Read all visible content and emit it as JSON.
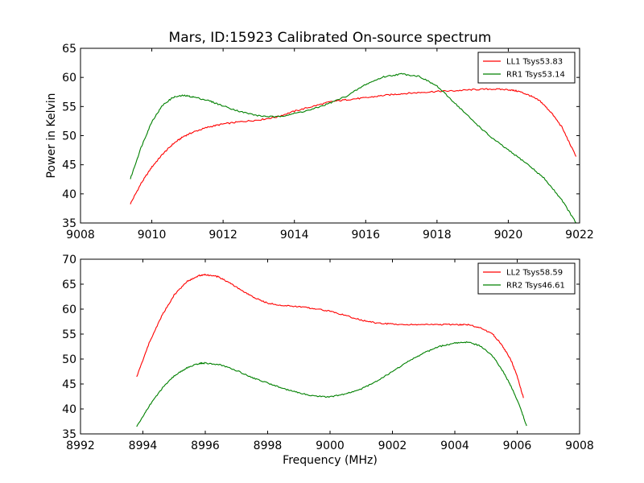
{
  "chart_data": [
    {
      "type": "line",
      "title": "Mars, ID:15923 Calibrated On-source spectrum",
      "xlabel": "",
      "ylabel": "Power in Kelvin",
      "xlim": [
        9008,
        9022
      ],
      "ylim": [
        35,
        65
      ],
      "xticks": [
        9008,
        9010,
        9012,
        9014,
        9016,
        9018,
        9020,
        9022
      ],
      "yticks": [
        35,
        40,
        45,
        50,
        55,
        60,
        65
      ],
      "grid": false,
      "legend_position": "top-right",
      "series": [
        {
          "name": "LL1 Tsys53.83",
          "color": "#ff0000",
          "x": [
            9009.4,
            9009.7,
            9010.0,
            9010.3,
            9010.6,
            9010.9,
            9011.2,
            9011.6,
            9012.0,
            9012.5,
            9013.0,
            9013.5,
            9014.0,
            9014.5,
            9015.0,
            9015.5,
            9016.0,
            9016.5,
            9017.0,
            9017.5,
            9018.0,
            9018.5,
            9019.0,
            9019.5,
            9020.0,
            9020.3,
            9020.6,
            9020.9,
            9021.2,
            9021.5,
            9021.9
          ],
          "y": [
            38.3,
            41.8,
            44.6,
            46.8,
            48.6,
            49.9,
            50.7,
            51.5,
            52.0,
            52.4,
            52.7,
            53.2,
            54.2,
            55.0,
            55.8,
            56.2,
            56.5,
            56.9,
            57.2,
            57.4,
            57.6,
            57.7,
            57.9,
            58.0,
            57.9,
            57.6,
            56.9,
            55.9,
            54.0,
            51.5,
            46.4
          ]
        },
        {
          "name": "RR1 Tsys53.14",
          "color": "#008000",
          "x": [
            9009.4,
            9009.7,
            9010.0,
            9010.3,
            9010.6,
            9010.9,
            9011.2,
            9011.6,
            9012.0,
            9012.5,
            9013.0,
            9013.5,
            9014.0,
            9014.5,
            9015.0,
            9015.5,
            9016.0,
            9016.5,
            9017.0,
            9017.5,
            9018.0,
            9018.5,
            9019.0,
            9019.5,
            9020.0,
            9020.5,
            9021.0,
            9021.5,
            9021.9
          ],
          "y": [
            42.6,
            48.0,
            52.4,
            55.2,
            56.6,
            56.9,
            56.6,
            56.0,
            55.1,
            54.1,
            53.4,
            53.2,
            53.8,
            54.5,
            55.6,
            56.9,
            58.8,
            60.1,
            60.6,
            60.2,
            58.5,
            55.6,
            52.6,
            49.8,
            47.5,
            45.3,
            42.7,
            39.0,
            35.0
          ]
        }
      ]
    },
    {
      "type": "line",
      "title": "",
      "xlabel": "Frequency (MHz)",
      "ylabel": "",
      "xlim": [
        8992,
        9008
      ],
      "ylim": [
        35,
        70
      ],
      "xticks": [
        8992,
        8994,
        8996,
        8998,
        9000,
        9002,
        9004,
        9006,
        9008
      ],
      "yticks": [
        35,
        40,
        45,
        50,
        55,
        60,
        65,
        70
      ],
      "grid": false,
      "legend_position": "top-right",
      "series": [
        {
          "name": "LL2 Tsys58.59",
          "color": "#ff0000",
          "x": [
            8993.8,
            8994.2,
            8994.6,
            8995.0,
            8995.4,
            8995.8,
            8996.0,
            8996.4,
            8996.8,
            8997.2,
            8997.6,
            8998.0,
            8998.5,
            8999.0,
            8999.5,
            9000.0,
            9000.5,
            9001.0,
            9001.5,
            9002.0,
            9002.5,
            9003.0,
            9003.5,
            9004.0,
            9004.4,
            9004.8,
            9005.2,
            9005.5,
            9005.8,
            9006.0,
            9006.2
          ],
          "y": [
            46.4,
            53.2,
            58.6,
            62.8,
            65.5,
            66.7,
            66.9,
            66.5,
            65.2,
            63.6,
            62.2,
            61.2,
            60.7,
            60.5,
            60.1,
            59.6,
            58.7,
            57.8,
            57.2,
            57.0,
            56.9,
            56.9,
            56.9,
            56.9,
            56.9,
            56.3,
            55.1,
            52.9,
            49.8,
            46.5,
            42.2
          ]
        },
        {
          "name": "RR2 Tsys46.61",
          "color": "#008000",
          "x": [
            8993.8,
            8994.2,
            8994.6,
            8995.0,
            8995.4,
            8995.8,
            8996.0,
            8996.5,
            8997.0,
            8997.5,
            8998.0,
            8998.5,
            8999.0,
            8999.5,
            9000.0,
            9000.5,
            9001.0,
            9001.5,
            9002.0,
            9002.5,
            9003.0,
            9003.5,
            9004.0,
            9004.4,
            9004.8,
            9005.2,
            9005.5,
            9005.8,
            9006.1,
            9006.3
          ],
          "y": [
            36.4,
            40.6,
            44.0,
            46.6,
            48.2,
            49.1,
            49.2,
            48.8,
            47.7,
            46.3,
            45.2,
            44.1,
            43.2,
            42.6,
            42.4,
            43.0,
            44.0,
            45.6,
            47.5,
            49.5,
            51.2,
            52.5,
            53.2,
            53.4,
            52.7,
            50.7,
            48.0,
            44.6,
            40.2,
            36.6
          ]
        }
      ]
    }
  ]
}
